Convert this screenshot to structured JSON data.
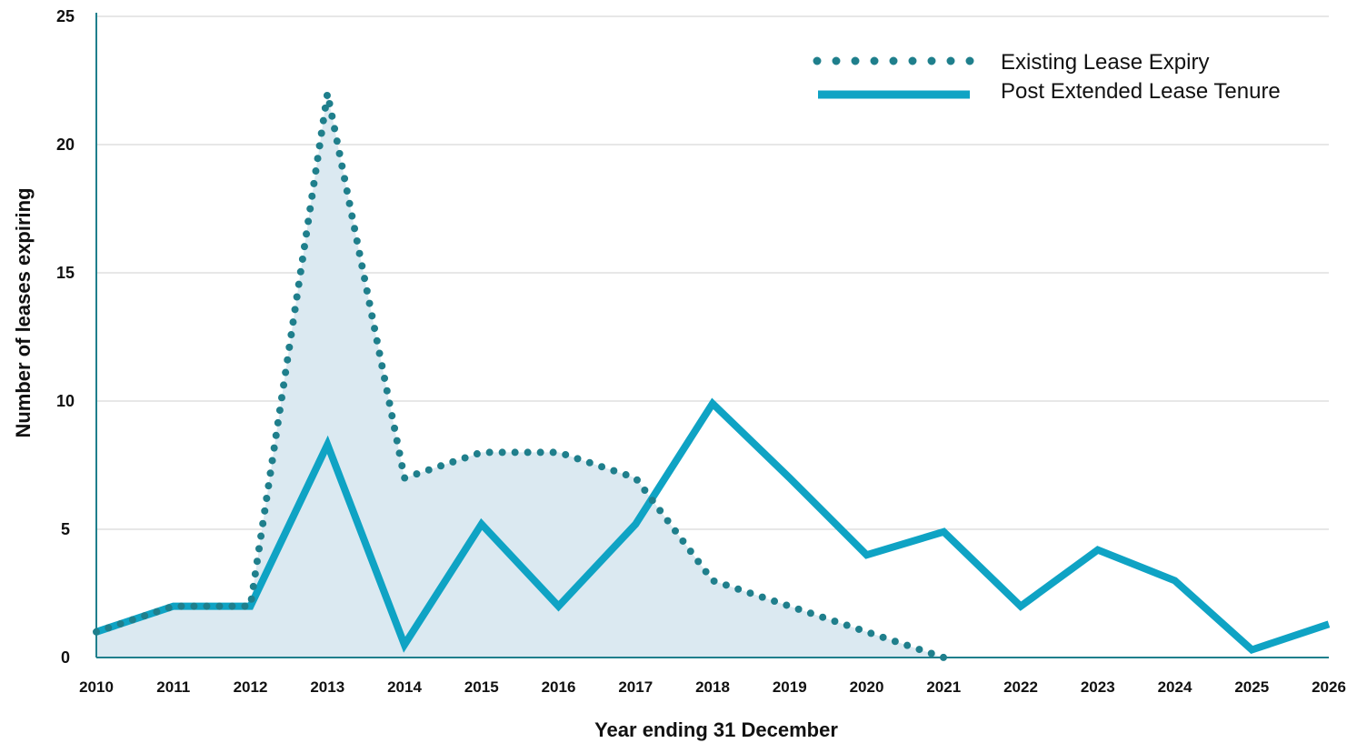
{
  "chart_data": {
    "type": "line",
    "xlabel": "Year ending 31 December",
    "ylabel": "Number of leases expiring",
    "ylim": [
      0,
      25
    ],
    "yticks": [
      0,
      5,
      10,
      15,
      20,
      25
    ],
    "x": [
      2010,
      2011,
      2012,
      2013,
      2014,
      2015,
      2016,
      2017,
      2018,
      2019,
      2020,
      2021,
      2022,
      2023,
      2024,
      2025,
      2026
    ],
    "grid": "horizontal",
    "legend_position": "top-right",
    "series": [
      {
        "name": "Existing Lease Expiry",
        "style": "dotted",
        "filled": true,
        "color": "#1f7f8c",
        "fill_color": "#dbe9f1",
        "points": [
          [
            2010,
            1
          ],
          [
            2011,
            2
          ],
          [
            2012,
            2
          ],
          [
            2013,
            22
          ],
          [
            2014,
            7
          ],
          [
            2015,
            8
          ],
          [
            2016,
            8
          ],
          [
            2017,
            7
          ],
          [
            2018,
            3
          ],
          [
            2019,
            2
          ],
          [
            2020,
            1
          ],
          [
            2021,
            0
          ]
        ]
      },
      {
        "name": "Post Extended Lease Tenure",
        "style": "solid",
        "filled": false,
        "color": "#0fa3c4",
        "points": [
          [
            2010,
            1
          ],
          [
            2011,
            2
          ],
          [
            2012,
            2
          ],
          [
            2013,
            8.3
          ],
          [
            2014,
            0.5
          ],
          [
            2015,
            5.2
          ],
          [
            2016,
            2
          ],
          [
            2017,
            5.2
          ],
          [
            2018,
            9.9
          ],
          [
            2019,
            7
          ],
          [
            2020,
            4
          ],
          [
            2021,
            4.9
          ],
          [
            2022,
            2
          ],
          [
            2023,
            4.2
          ],
          [
            2024,
            3
          ],
          [
            2025,
            0.3
          ],
          [
            2026,
            1.3
          ]
        ]
      }
    ]
  }
}
